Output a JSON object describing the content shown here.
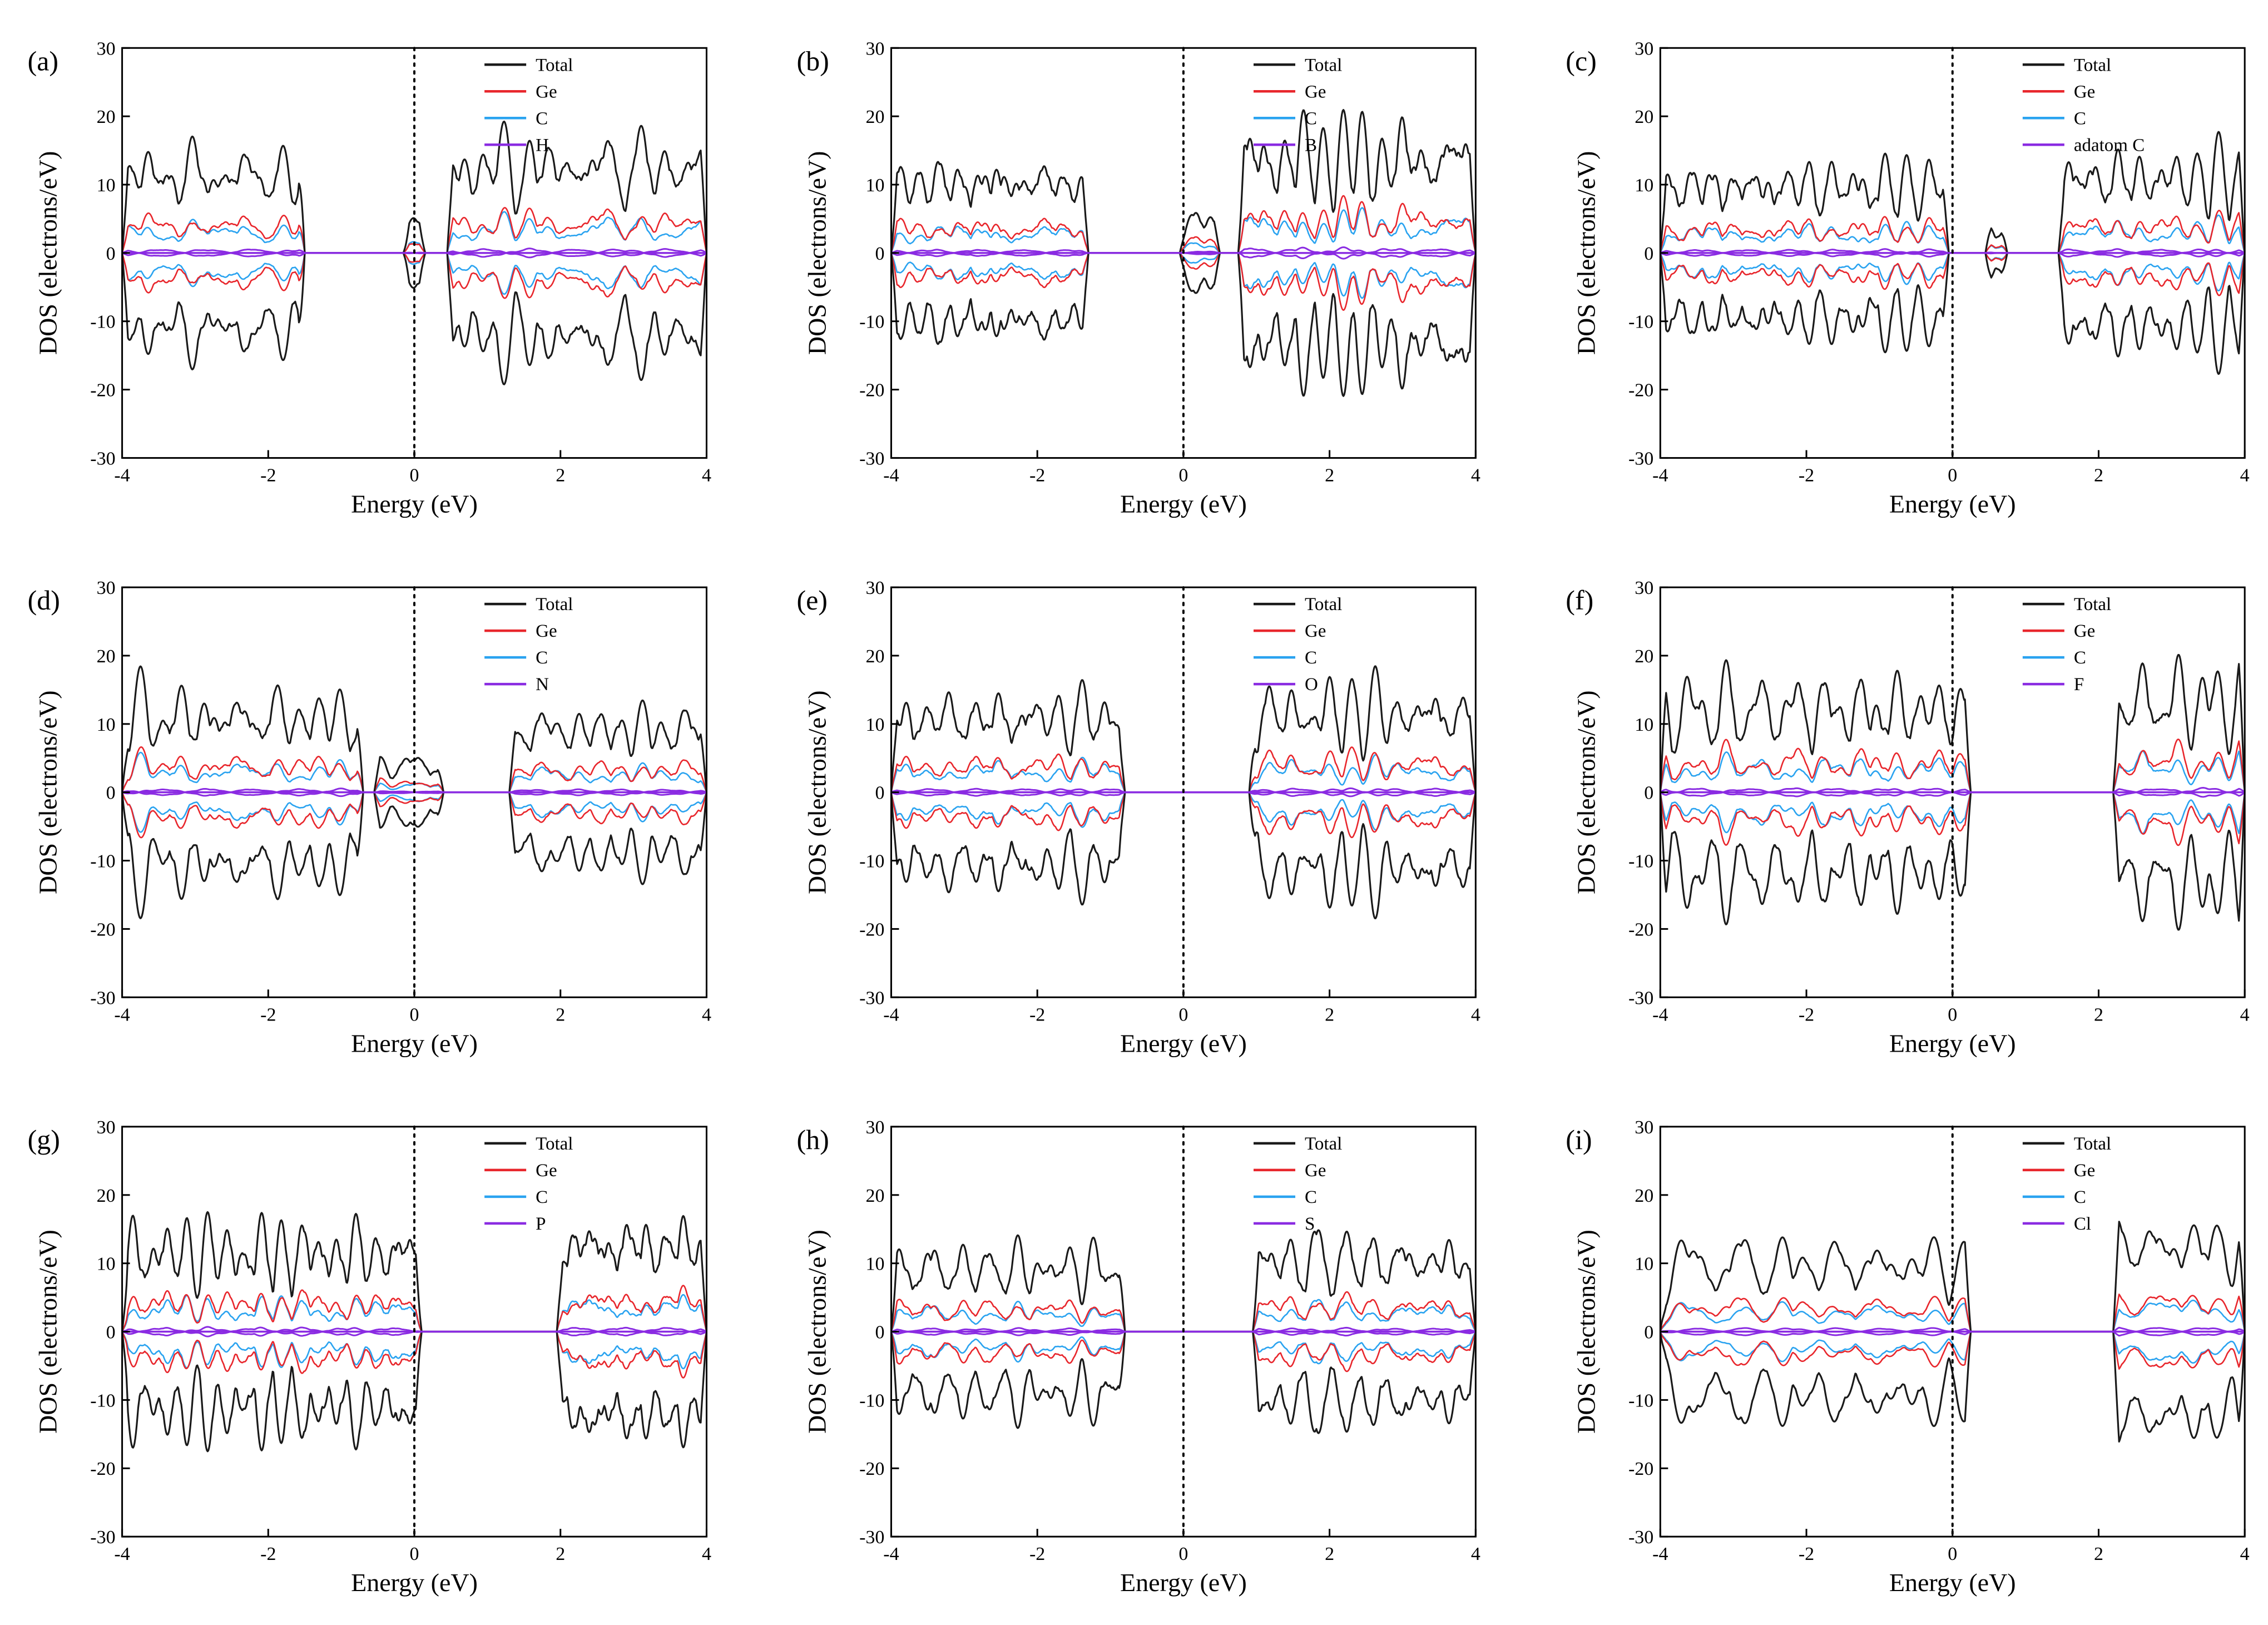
{
  "figure": {
    "shared": {
      "xlabel": "Energy (eV)",
      "ylabel": "DOS (electrons/eV)",
      "xlim": [
        -4,
        4
      ],
      "ylim": [
        -30,
        30
      ],
      "xticks": [
        -4,
        -2,
        0,
        2,
        4
      ],
      "yticks": [
        -30,
        -20,
        -10,
        0,
        10,
        20,
        30
      ],
      "fermi_line_x": 0,
      "fermi_line_style": "dotted",
      "legend_position": "top-right",
      "grid": false,
      "colors": {
        "Total": "#1a1a1a",
        "Ge": "#e8262c",
        "C": "#2aa3f0",
        "dopant": "#8a2be2"
      }
    }
  },
  "chart_data": [
    {
      "type": "line",
      "panel": "(a)",
      "xlabel": "Energy (eV)",
      "ylabel": "DOS (electrons/eV)",
      "xlim": [
        -4,
        4
      ],
      "ylim": [
        -30,
        30
      ],
      "series": [
        {
          "name": "Total"
        },
        {
          "name": "Ge"
        },
        {
          "name": "C"
        },
        {
          "name": "H"
        }
      ],
      "bands": [
        [
          -4.0,
          -1.5
        ],
        [
          -0.15,
          0.15
        ],
        [
          0.45,
          4.0
        ]
      ],
      "amp": [
        20,
        7,
        22
      ],
      "spin_symmetric": true
    },
    {
      "type": "line",
      "panel": "(b)",
      "xlabel": "Energy (eV)",
      "ylabel": "DOS (electrons/eV)",
      "xlim": [
        -4,
        4
      ],
      "ylim": [
        -30,
        30
      ],
      "series": [
        {
          "name": "Total"
        },
        {
          "name": "Ge"
        },
        {
          "name": "C"
        },
        {
          "name": "B"
        }
      ],
      "bands": [
        [
          -4.0,
          -1.3
        ],
        [
          -0.05,
          0.5
        ],
        [
          0.75,
          4.0
        ]
      ],
      "amp": [
        18,
        8,
        24
      ],
      "spin_symmetric": true
    },
    {
      "type": "line",
      "panel": "(c)",
      "xlabel": "Energy (eV)",
      "ylabel": "DOS (electrons/eV)",
      "xlim": [
        -4,
        4
      ],
      "ylim": [
        -30,
        30
      ],
      "series": [
        {
          "name": "Total"
        },
        {
          "name": "Ge"
        },
        {
          "name": "C"
        },
        {
          "name": "adatom C"
        }
      ],
      "bands": [
        [
          -4.0,
          -0.05
        ],
        [
          0.45,
          0.75
        ],
        [
          1.45,
          4.0
        ]
      ],
      "amp": [
        17,
        6,
        19
      ],
      "spin_symmetric": true
    },
    {
      "type": "line",
      "panel": "(d)",
      "xlabel": "Energy (eV)",
      "ylabel": "DOS (electrons/eV)",
      "xlim": [
        -4,
        4
      ],
      "ylim": [
        -30,
        30
      ],
      "series": [
        {
          "name": "Total"
        },
        {
          "name": "Ge"
        },
        {
          "name": "C"
        },
        {
          "name": "N"
        }
      ],
      "bands": [
        [
          -4.0,
          -0.7
        ],
        [
          -0.55,
          0.4
        ],
        [
          1.3,
          4.0
        ]
      ],
      "amp": [
        19,
        7,
        16
      ],
      "spin_symmetric": true
    },
    {
      "type": "line",
      "panel": "(e)",
      "xlabel": "Energy (eV)",
      "ylabel": "DOS (electrons/eV)",
      "xlim": [
        -4,
        4
      ],
      "ylim": [
        -30,
        30
      ],
      "series": [
        {
          "name": "Total"
        },
        {
          "name": "Ge"
        },
        {
          "name": "C"
        },
        {
          "name": "O"
        }
      ],
      "bands": [
        [
          -4.0,
          -0.8
        ],
        [
          0.9,
          4.0
        ]
      ],
      "amp": [
        19,
        20
      ],
      "spin_symmetric": true
    },
    {
      "type": "line",
      "panel": "(f)",
      "xlabel": "Energy (eV)",
      "ylabel": "DOS (electrons/eV)",
      "xlim": [
        -4,
        4
      ],
      "ylim": [
        -30,
        30
      ],
      "series": [
        {
          "name": "Total"
        },
        {
          "name": "Ge"
        },
        {
          "name": "C"
        },
        {
          "name": "F"
        }
      ],
      "bands": [
        [
          -4.0,
          0.25
        ],
        [
          2.2,
          4.0
        ]
      ],
      "amp": [
        21,
        23
      ],
      "spin_symmetric": true
    },
    {
      "type": "line",
      "panel": "(g)",
      "xlabel": "Energy (eV)",
      "ylabel": "DOS (electrons/eV)",
      "xlim": [
        -4,
        4
      ],
      "ylim": [
        -30,
        30
      ],
      "series": [
        {
          "name": "Total"
        },
        {
          "name": "Ge"
        },
        {
          "name": "C"
        },
        {
          "name": "P"
        }
      ],
      "bands": [
        [
          -4.0,
          0.1
        ],
        [
          1.95,
          4.0
        ]
      ],
      "amp": [
        20,
        22
      ],
      "spin_symmetric": true
    },
    {
      "type": "line",
      "panel": "(h)",
      "xlabel": "Energy (eV)",
      "ylabel": "DOS (electrons/eV)",
      "xlim": [
        -4,
        4
      ],
      "ylim": [
        -30,
        30
      ],
      "series": [
        {
          "name": "Total"
        },
        {
          "name": "Ge"
        },
        {
          "name": "C"
        },
        {
          "name": "S"
        }
      ],
      "bands": [
        [
          -4.0,
          -0.8
        ],
        [
          0.95,
          4.0
        ]
      ],
      "amp": [
        16,
        18
      ],
      "spin_symmetric": true
    },
    {
      "type": "line",
      "panel": "(i)",
      "xlabel": "Energy (eV)",
      "ylabel": "DOS (electrons/eV)",
      "xlim": [
        -4,
        4
      ],
      "ylim": [
        -30,
        30
      ],
      "series": [
        {
          "name": "Total"
        },
        {
          "name": "Ge"
        },
        {
          "name": "C"
        },
        {
          "name": "Cl"
        }
      ],
      "bands": [
        [
          -4.0,
          0.25
        ],
        [
          2.2,
          4.0
        ]
      ],
      "amp": [
        17,
        22
      ],
      "spin_symmetric": true
    }
  ]
}
